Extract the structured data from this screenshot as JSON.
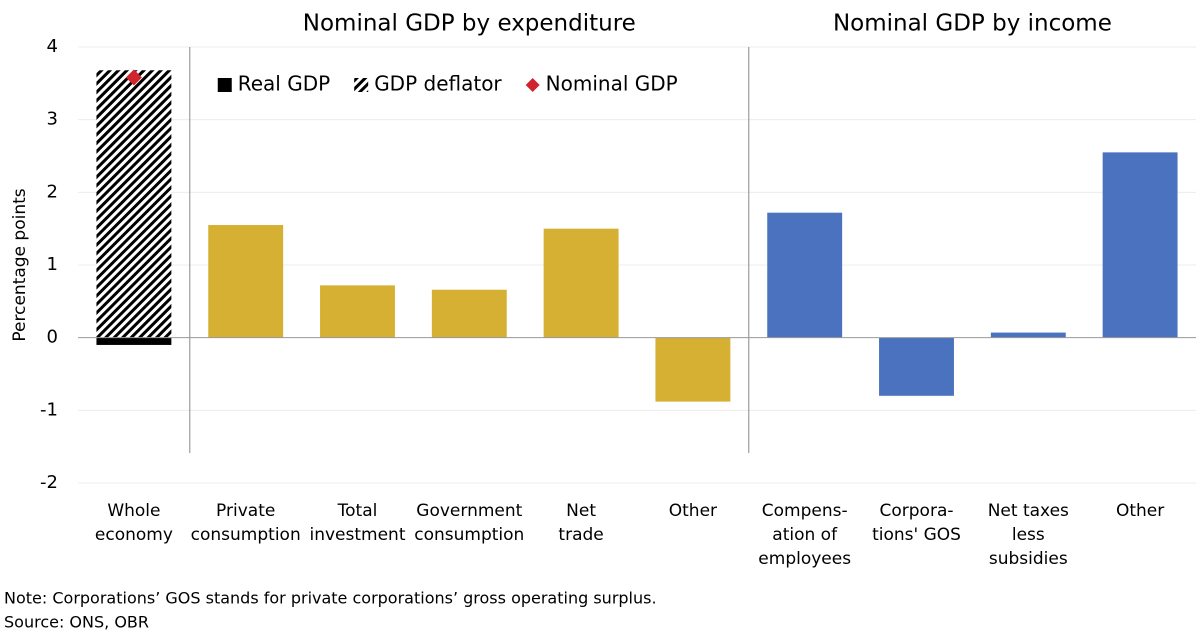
{
  "chart_data": {
    "type": "bar",
    "panel_titles": [
      "Nominal GDP by expenditure",
      "Nominal GDP by income"
    ],
    "ylabel": "Percentage points",
    "categories": [
      [
        "Whole",
        "economy"
      ],
      [
        "Private",
        "consumption"
      ],
      [
        "Total",
        "investment"
      ],
      [
        "Government",
        "consumption"
      ],
      [
        "Net",
        "trade"
      ],
      [
        "Other"
      ],
      [
        "Compens-",
        "ation of",
        "employees"
      ],
      [
        "Corpora-",
        "tions' GOS"
      ],
      [
        "Net taxes",
        "less",
        "subsidies"
      ],
      [
        "Other"
      ]
    ],
    "series": [
      {
        "name": "Real GDP",
        "color": "#000000",
        "values": [
          -0.1,
          null,
          null,
          null,
          null,
          null,
          null,
          null,
          null,
          null
        ]
      },
      {
        "name": "GDP deflator",
        "color": "#000000",
        "fill": "hatch",
        "values": [
          3.68,
          null,
          null,
          null,
          null,
          null,
          null,
          null,
          null,
          null
        ]
      },
      {
        "name": "Nominal GDP",
        "color": "#d0252e",
        "mark": "diamond",
        "values": [
          3.58,
          null,
          null,
          null,
          null,
          null,
          null,
          null,
          null,
          null
        ]
      },
      {
        "color": "#d6b033",
        "values": [
          null,
          1.55,
          0.72,
          0.66,
          1.5,
          -0.88,
          null,
          null,
          null,
          null
        ]
      },
      {
        "color": "#4a72be",
        "values": [
          null,
          null,
          null,
          null,
          null,
          null,
          1.72,
          -0.8,
          0.07,
          2.55
        ]
      }
    ],
    "ylim": [
      -2,
      4
    ],
    "yticks": [
      -2,
      -1,
      0,
      1,
      2,
      3,
      4
    ],
    "grid": true,
    "legend": "top-left",
    "note": "Note: Corporations’ GOS stands for private corporations’ gross operating surplus.",
    "source": "Source: ONS, OBR"
  }
}
